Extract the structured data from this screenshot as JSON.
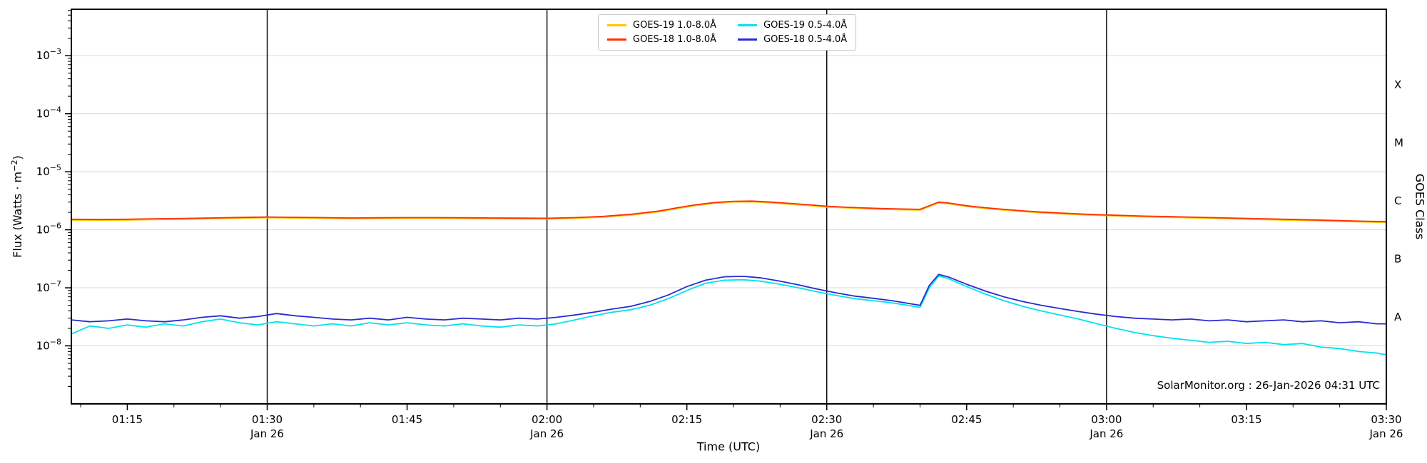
{
  "watermark": "SolarMonitor.org : 26-Jan-2026 04:31 UTC",
  "chart_data": {
    "type": "line",
    "title": "",
    "xlabel": "Time (UTC)",
    "ylabel_pre": "Flux (Watts · m",
    "ylabel_sup": "−2",
    "ylabel_post": ")",
    "ylabel_right": "GOES Class",
    "x_unit": "minutes after 01:00 UTC, 26 Jan",
    "x_domain": [
      9,
      150
    ],
    "ylog_domain": [
      -9,
      -2.2
    ],
    "x_minor_step": 5,
    "y_tick_exponents": [
      -3,
      -4,
      -5,
      -6,
      -7,
      -8
    ],
    "day_lines_minutes": [
      30,
      60,
      90,
      120
    ],
    "grid_color": "#d8d8d8",
    "x_ticks": [
      {
        "m": 15,
        "label": "01:15"
      },
      {
        "m": 30,
        "label": "01:30",
        "sub": "Jan 26"
      },
      {
        "m": 45,
        "label": "01:45"
      },
      {
        "m": 60,
        "label": "02:00",
        "sub": "Jan 26"
      },
      {
        "m": 75,
        "label": "02:15"
      },
      {
        "m": 90,
        "label": "02:30",
        "sub": "Jan 26"
      },
      {
        "m": 105,
        "label": "02:45"
      },
      {
        "m": 120,
        "label": "03:00",
        "sub": "Jan 26"
      },
      {
        "m": 135,
        "label": "03:15"
      },
      {
        "m": 150,
        "label": "03:30",
        "sub": "Jan 26"
      }
    ],
    "class_bands": [
      {
        "label": "X",
        "flux": 0.000316
      },
      {
        "label": "M",
        "flux": 3.16e-05
      },
      {
        "label": "C",
        "flux": 3.16e-06
      },
      {
        "label": "B",
        "flux": 3.16e-07
      },
      {
        "label": "A",
        "flux": 3.16e-08
      }
    ],
    "series": [
      {
        "name": "GOES-19 1.0-8.0Å",
        "color": "#ffc400",
        "points": [
          [
            9,
            1.47e-06
          ],
          [
            12,
            1.46e-06
          ],
          [
            15,
            1.47e-06
          ],
          [
            18,
            1.5e-06
          ],
          [
            21,
            1.52e-06
          ],
          [
            24,
            1.55e-06
          ],
          [
            27,
            1.58e-06
          ],
          [
            30,
            1.61e-06
          ],
          [
            33,
            1.59e-06
          ],
          [
            36,
            1.57e-06
          ],
          [
            39,
            1.55e-06
          ],
          [
            42,
            1.56e-06
          ],
          [
            45,
            1.57e-06
          ],
          [
            48,
            1.57e-06
          ],
          [
            51,
            1.56e-06
          ],
          [
            54,
            1.55e-06
          ],
          [
            57,
            1.54e-06
          ],
          [
            60,
            1.53e-06
          ],
          [
            63,
            1.57e-06
          ],
          [
            66,
            1.65e-06
          ],
          [
            69,
            1.79e-06
          ],
          [
            72,
            2.04e-06
          ],
          [
            74,
            2.33e-06
          ],
          [
            76,
            2.62e-06
          ],
          [
            78,
            2.86e-06
          ],
          [
            80,
            3.01e-06
          ],
          [
            82,
            3.03e-06
          ],
          [
            84,
            2.91e-06
          ],
          [
            86,
            2.76e-06
          ],
          [
            88,
            2.62e-06
          ],
          [
            90,
            2.47e-06
          ],
          [
            92,
            2.38e-06
          ],
          [
            94,
            2.31e-06
          ],
          [
            96,
            2.25e-06
          ],
          [
            98,
            2.21e-06
          ],
          [
            100,
            2.18e-06
          ],
          [
            101,
            2.52e-06
          ],
          [
            102,
            2.91e-06
          ],
          [
            103,
            2.81e-06
          ],
          [
            105,
            2.52e-06
          ],
          [
            107,
            2.33e-06
          ],
          [
            109,
            2.18e-06
          ],
          [
            111,
            2.06e-06
          ],
          [
            113,
            1.96e-06
          ],
          [
            115,
            1.89e-06
          ],
          [
            117,
            1.82e-06
          ],
          [
            119,
            1.77e-06
          ],
          [
            121,
            1.73e-06
          ],
          [
            124,
            1.67e-06
          ],
          [
            127,
            1.63e-06
          ],
          [
            130,
            1.59e-06
          ],
          [
            133,
            1.55e-06
          ],
          [
            136,
            1.51e-06
          ],
          [
            139,
            1.47e-06
          ],
          [
            142,
            1.44e-06
          ],
          [
            145,
            1.4e-06
          ],
          [
            148,
            1.36e-06
          ],
          [
            150,
            1.34e-06
          ]
        ]
      },
      {
        "name": "GOES-18 1.0-8.0Å",
        "color": "#ff3000",
        "points": [
          [
            9,
            1.52e-06
          ],
          [
            12,
            1.5e-06
          ],
          [
            15,
            1.52e-06
          ],
          [
            18,
            1.55e-06
          ],
          [
            21,
            1.57e-06
          ],
          [
            24,
            1.6e-06
          ],
          [
            27,
            1.63e-06
          ],
          [
            30,
            1.66e-06
          ],
          [
            33,
            1.64e-06
          ],
          [
            36,
            1.62e-06
          ],
          [
            39,
            1.6e-06
          ],
          [
            42,
            1.61e-06
          ],
          [
            45,
            1.62e-06
          ],
          [
            48,
            1.62e-06
          ],
          [
            51,
            1.61e-06
          ],
          [
            54,
            1.6e-06
          ],
          [
            57,
            1.59e-06
          ],
          [
            60,
            1.58e-06
          ],
          [
            63,
            1.62e-06
          ],
          [
            66,
            1.7e-06
          ],
          [
            69,
            1.85e-06
          ],
          [
            72,
            2.1e-06
          ],
          [
            74,
            2.4e-06
          ],
          [
            76,
            2.7e-06
          ],
          [
            78,
            2.95e-06
          ],
          [
            80,
            3.1e-06
          ],
          [
            82,
            3.12e-06
          ],
          [
            84,
            3e-06
          ],
          [
            86,
            2.85e-06
          ],
          [
            88,
            2.7e-06
          ],
          [
            90,
            2.55e-06
          ],
          [
            92,
            2.45e-06
          ],
          [
            94,
            2.38e-06
          ],
          [
            96,
            2.32e-06
          ],
          [
            98,
            2.28e-06
          ],
          [
            100,
            2.25e-06
          ],
          [
            101,
            2.6e-06
          ],
          [
            102,
            3e-06
          ],
          [
            103,
            2.9e-06
          ],
          [
            105,
            2.6e-06
          ],
          [
            107,
            2.4e-06
          ],
          [
            109,
            2.25e-06
          ],
          [
            111,
            2.12e-06
          ],
          [
            113,
            2.02e-06
          ],
          [
            115,
            1.95e-06
          ],
          [
            117,
            1.88e-06
          ],
          [
            119,
            1.82e-06
          ],
          [
            121,
            1.78e-06
          ],
          [
            124,
            1.72e-06
          ],
          [
            127,
            1.68e-06
          ],
          [
            130,
            1.64e-06
          ],
          [
            133,
            1.6e-06
          ],
          [
            136,
            1.56e-06
          ],
          [
            139,
            1.52e-06
          ],
          [
            142,
            1.48e-06
          ],
          [
            145,
            1.44e-06
          ],
          [
            148,
            1.4e-06
          ],
          [
            150,
            1.38e-06
          ]
        ]
      },
      {
        "name": "GOES-19 0.5-4.0Å",
        "color": "#00e2ef",
        "points": [
          [
            9,
            1.6e-08
          ],
          [
            11,
            2.2e-08
          ],
          [
            13,
            2e-08
          ],
          [
            15,
            2.3e-08
          ],
          [
            17,
            2.1e-08
          ],
          [
            19,
            2.4e-08
          ],
          [
            21,
            2.2e-08
          ],
          [
            23,
            2.6e-08
          ],
          [
            25,
            2.9e-08
          ],
          [
            27,
            2.5e-08
          ],
          [
            29,
            2.3e-08
          ],
          [
            31,
            2.6e-08
          ],
          [
            33,
            2.4e-08
          ],
          [
            35,
            2.2e-08
          ],
          [
            37,
            2.4e-08
          ],
          [
            39,
            2.2e-08
          ],
          [
            41,
            2.5e-08
          ],
          [
            43,
            2.3e-08
          ],
          [
            45,
            2.5e-08
          ],
          [
            47,
            2.3e-08
          ],
          [
            49,
            2.2e-08
          ],
          [
            51,
            2.4e-08
          ],
          [
            53,
            2.2e-08
          ],
          [
            55,
            2.1e-08
          ],
          [
            57,
            2.3e-08
          ],
          [
            59,
            2.2e-08
          ],
          [
            61,
            2.4e-08
          ],
          [
            63,
            2.8e-08
          ],
          [
            65,
            3.3e-08
          ],
          [
            67,
            3.8e-08
          ],
          [
            69,
            4.2e-08
          ],
          [
            71,
            5e-08
          ],
          [
            73,
            6.5e-08
          ],
          [
            75,
            9e-08
          ],
          [
            77,
            1.2e-07
          ],
          [
            79,
            1.35e-07
          ],
          [
            81,
            1.38e-07
          ],
          [
            83,
            1.3e-07
          ],
          [
            85,
            1.15e-07
          ],
          [
            87,
            1e-07
          ],
          [
            89,
            8.5e-08
          ],
          [
            91,
            7.4e-08
          ],
          [
            93,
            6.5e-08
          ],
          [
            95,
            6e-08
          ],
          [
            97,
            5.5e-08
          ],
          [
            99,
            4.9e-08
          ],
          [
            100,
            4.6e-08
          ],
          [
            101,
            1e-07
          ],
          [
            102,
            1.6e-07
          ],
          [
            103,
            1.45e-07
          ],
          [
            105,
            1.05e-07
          ],
          [
            107,
            7.8e-08
          ],
          [
            109,
            6e-08
          ],
          [
            111,
            4.8e-08
          ],
          [
            113,
            4e-08
          ],
          [
            115,
            3.4e-08
          ],
          [
            117,
            2.9e-08
          ],
          [
            119,
            2.4e-08
          ],
          [
            121,
            2e-08
          ],
          [
            123,
            1.7e-08
          ],
          [
            125,
            1.5e-08
          ],
          [
            127,
            1.35e-08
          ],
          [
            129,
            1.25e-08
          ],
          [
            131,
            1.15e-08
          ],
          [
            133,
            1.2e-08
          ],
          [
            135,
            1.1e-08
          ],
          [
            137,
            1.15e-08
          ],
          [
            139,
            1.05e-08
          ],
          [
            141,
            1.1e-08
          ],
          [
            143,
            9.5e-09
          ],
          [
            145,
            9e-09
          ],
          [
            147,
            8e-09
          ],
          [
            149,
            7.5e-09
          ],
          [
            150,
            7e-09
          ]
        ]
      },
      {
        "name": "GOES-18 0.5-4.0Å",
        "color": "#2a2ad0",
        "points": [
          [
            9,
            2.8e-08
          ],
          [
            11,
            2.6e-08
          ],
          [
            13,
            2.7e-08
          ],
          [
            15,
            2.9e-08
          ],
          [
            17,
            2.7e-08
          ],
          [
            19,
            2.6e-08
          ],
          [
            21,
            2.8e-08
          ],
          [
            23,
            3.1e-08
          ],
          [
            25,
            3.3e-08
          ],
          [
            27,
            3e-08
          ],
          [
            29,
            3.2e-08
          ],
          [
            31,
            3.6e-08
          ],
          [
            33,
            3.3e-08
          ],
          [
            35,
            3.1e-08
          ],
          [
            37,
            2.9e-08
          ],
          [
            39,
            2.8e-08
          ],
          [
            41,
            3e-08
          ],
          [
            43,
            2.8e-08
          ],
          [
            45,
            3.1e-08
          ],
          [
            47,
            2.9e-08
          ],
          [
            49,
            2.8e-08
          ],
          [
            51,
            3e-08
          ],
          [
            53,
            2.9e-08
          ],
          [
            55,
            2.8e-08
          ],
          [
            57,
            3e-08
          ],
          [
            59,
            2.9e-08
          ],
          [
            61,
            3.1e-08
          ],
          [
            63,
            3.4e-08
          ],
          [
            65,
            3.8e-08
          ],
          [
            67,
            4.3e-08
          ],
          [
            69,
            4.8e-08
          ],
          [
            71,
            5.8e-08
          ],
          [
            73,
            7.5e-08
          ],
          [
            75,
            1.05e-07
          ],
          [
            77,
            1.35e-07
          ],
          [
            79,
            1.55e-07
          ],
          [
            81,
            1.58e-07
          ],
          [
            83,
            1.48e-07
          ],
          [
            85,
            1.3e-07
          ],
          [
            87,
            1.12e-07
          ],
          [
            89,
            9.5e-08
          ],
          [
            91,
            8.2e-08
          ],
          [
            93,
            7.2e-08
          ],
          [
            95,
            6.6e-08
          ],
          [
            97,
            6e-08
          ],
          [
            99,
            5.3e-08
          ],
          [
            100,
            5e-08
          ],
          [
            101,
            1.1e-07
          ],
          [
            102,
            1.7e-07
          ],
          [
            103,
            1.55e-07
          ],
          [
            105,
            1.15e-07
          ],
          [
            107,
            8.8e-08
          ],
          [
            109,
            7e-08
          ],
          [
            111,
            5.8e-08
          ],
          [
            113,
            5e-08
          ],
          [
            115,
            4.4e-08
          ],
          [
            117,
            3.9e-08
          ],
          [
            119,
            3.5e-08
          ],
          [
            121,
            3.2e-08
          ],
          [
            123,
            3e-08
          ],
          [
            125,
            2.9e-08
          ],
          [
            127,
            2.8e-08
          ],
          [
            129,
            2.9e-08
          ],
          [
            131,
            2.7e-08
          ],
          [
            133,
            2.8e-08
          ],
          [
            135,
            2.6e-08
          ],
          [
            137,
            2.7e-08
          ],
          [
            139,
            2.8e-08
          ],
          [
            141,
            2.6e-08
          ],
          [
            143,
            2.7e-08
          ],
          [
            145,
            2.5e-08
          ],
          [
            147,
            2.6e-08
          ],
          [
            149,
            2.4e-08
          ],
          [
            150,
            2.4e-08
          ]
        ]
      }
    ]
  }
}
